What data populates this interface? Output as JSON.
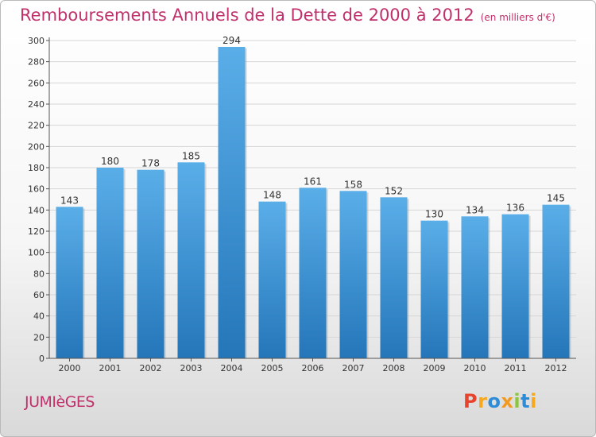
{
  "header": {
    "title": "Remboursements Annuels de la Dette de 2000 à 2012",
    "subtitle": "(en milliers d'€)"
  },
  "footer": {
    "commune": "JUMIèGES",
    "brand": "Proxiti",
    "brand_colors": [
      "#e8432d",
      "#f7a81b",
      "#2e8bd6",
      "#f29a1f",
      "#8cc63f",
      "#2e8bd6",
      "#f7a81b"
    ]
  },
  "colors": {
    "title": "#c0306a",
    "bar_top": "#5aaee8",
    "bar_bottom": "#2476b9",
    "axis": "#333333"
  },
  "chart_data": {
    "type": "bar",
    "categories": [
      "2000",
      "2001",
      "2002",
      "2003",
      "2004",
      "2005",
      "2006",
      "2007",
      "2008",
      "2009",
      "2010",
      "2011",
      "2012"
    ],
    "values": [
      143,
      180,
      178,
      185,
      294,
      148,
      161,
      158,
      152,
      130,
      134,
      136,
      145
    ],
    "ylim": [
      0,
      300
    ],
    "yticks": [
      0,
      20,
      40,
      60,
      80,
      100,
      120,
      140,
      160,
      180,
      200,
      220,
      240,
      260,
      280,
      300
    ],
    "grid": true,
    "legend": "none"
  }
}
